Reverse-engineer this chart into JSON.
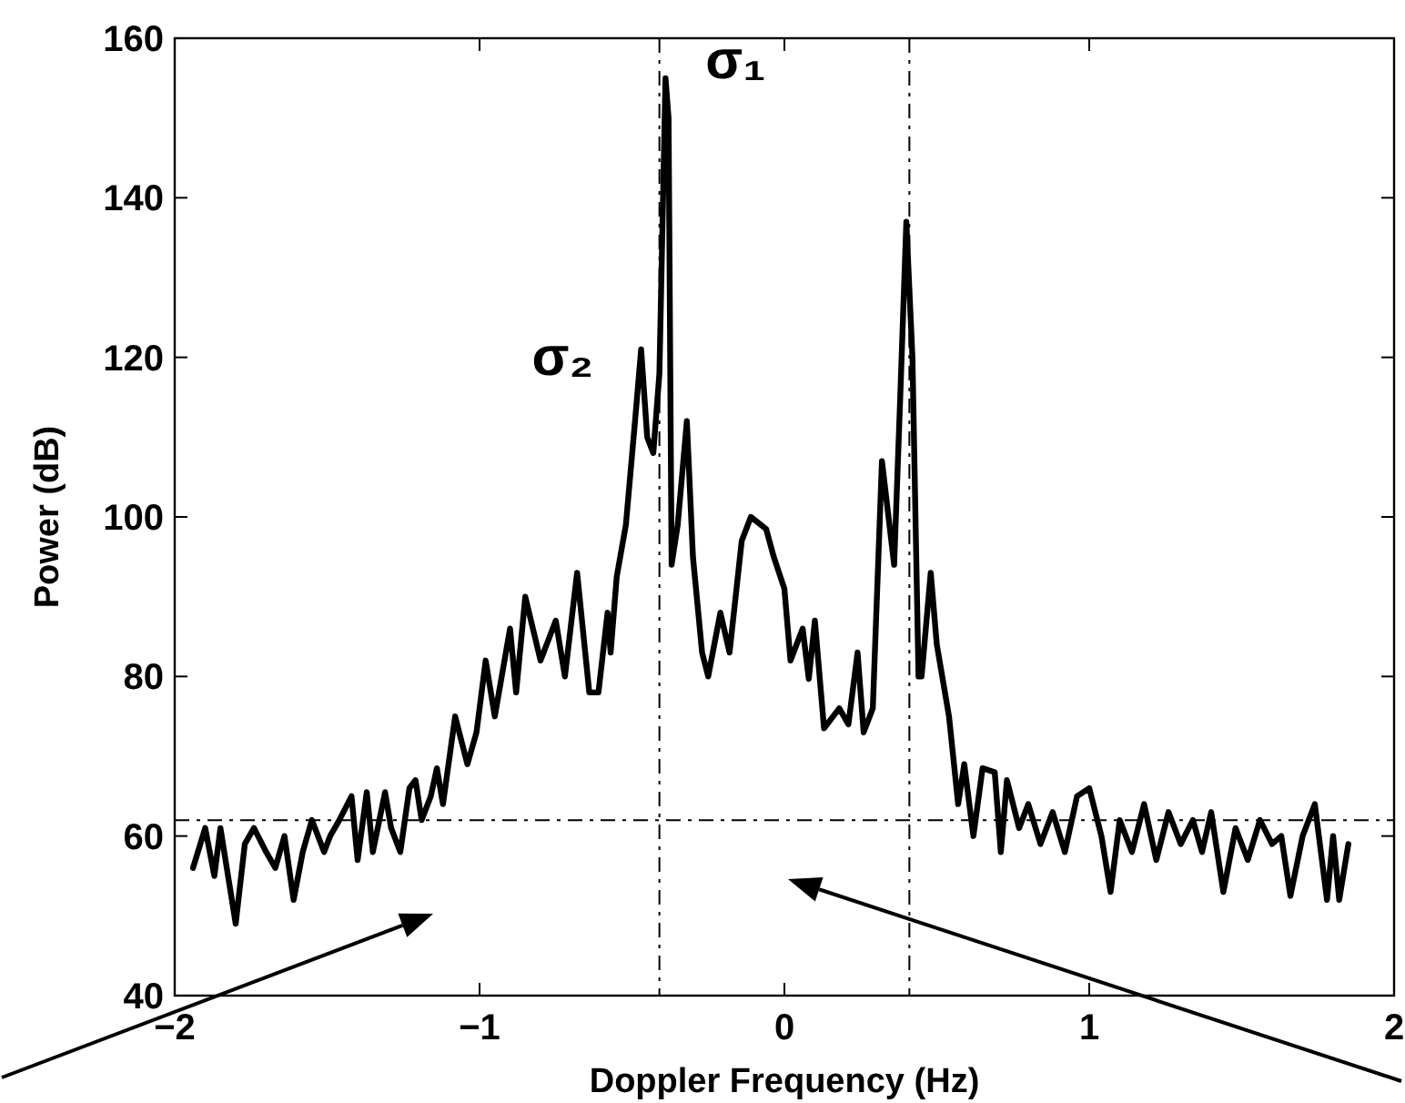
{
  "chart_data": {
    "type": "line",
    "xlabel": "Doppler Frequency (Hz)",
    "ylabel": "Power (dB)",
    "xlim": [
      -2,
      2
    ],
    "xticks": [
      {
        "value": -2,
        "label": "−2"
      },
      {
        "value": -1,
        "label": "−1"
      },
      0,
      1,
      2
    ],
    "ylim": [
      40,
      160
    ],
    "yticks": [
      40,
      60,
      80,
      100,
      120,
      140,
      160
    ],
    "grid": false,
    "marker": "none",
    "line_style": "solid",
    "ref_lines": [
      {
        "axis": "x",
        "value": -0.41,
        "line_style": "dashdot",
        "color": "#000000"
      },
      {
        "axis": "x",
        "value": 0.41,
        "line_style": "dashdot",
        "color": "#000000"
      },
      {
        "axis": "y",
        "value": 62,
        "line_style": "dashdot",
        "color": "#000000"
      }
    ],
    "annotations": [
      {
        "text": "σ₁",
        "x": -0.39,
        "y": 155
      },
      {
        "text": "σ₂",
        "x": -0.47,
        "y": 121
      }
    ],
    "series": [
      {
        "color": "#000000",
        "x": [
          -1.94,
          -1.9,
          -1.87,
          -1.85,
          -1.8,
          -1.77,
          -1.74,
          -1.7,
          -1.67,
          -1.64,
          -1.61,
          -1.58,
          -1.55,
          -1.51,
          -1.49,
          -1.46,
          -1.42,
          -1.4,
          -1.37,
          -1.35,
          -1.31,
          -1.29,
          -1.26,
          -1.23,
          -1.21,
          -1.19,
          -1.16,
          -1.14,
          -1.12,
          -1.08,
          -1.04,
          -1.01,
          -0.98,
          -0.95,
          -0.9,
          -0.88,
          -0.85,
          -0.8,
          -0.75,
          -0.72,
          -0.68,
          -0.64,
          -0.61,
          -0.58,
          -0.57,
          -0.55,
          -0.52,
          -0.49,
          -0.47,
          -0.45,
          -0.43,
          -0.41,
          -0.39,
          -0.38,
          -0.37,
          -0.35,
          -0.32,
          -0.3,
          -0.27,
          -0.25,
          -0.21,
          -0.18,
          -0.14,
          -0.11,
          -0.06,
          -0.035,
          0.0,
          0.02,
          0.06,
          0.08,
          0.1,
          0.13,
          0.18,
          0.21,
          0.24,
          0.26,
          0.29,
          0.32,
          0.36,
          0.38,
          0.4,
          0.42,
          0.44,
          0.45,
          0.48,
          0.5,
          0.54,
          0.57,
          0.59,
          0.62,
          0.65,
          0.69,
          0.71,
          0.73,
          0.77,
          0.8,
          0.84,
          0.88,
          0.92,
          0.96,
          1.0,
          1.04,
          1.07,
          1.1,
          1.14,
          1.18,
          1.22,
          1.26,
          1.3,
          1.34,
          1.37,
          1.4,
          1.44,
          1.48,
          1.52,
          1.56,
          1.6,
          1.63,
          1.66,
          1.7,
          1.74,
          1.78,
          1.8,
          1.82,
          1.85
        ],
        "values": [
          56,
          61,
          55,
          61,
          49,
          59,
          61,
          58,
          56,
          60,
          52,
          58,
          62,
          58,
          60,
          62,
          65,
          57,
          65.5,
          58,
          65.5,
          61,
          58,
          66,
          67,
          62,
          65,
          68.5,
          64,
          75,
          69,
          73,
          82,
          75,
          86,
          78,
          90,
          82,
          87,
          80,
          93,
          78,
          78,
          88,
          83,
          92.5,
          99,
          112,
          121,
          110,
          108,
          118,
          155,
          150,
          94,
          99,
          112,
          95,
          83,
          80,
          88,
          83,
          97,
          100,
          98.5,
          95,
          91,
          82,
          86,
          79.7,
          87,
          73.5,
          76,
          74,
          83,
          73,
          76,
          107,
          94,
          115,
          137,
          120,
          80,
          80,
          93,
          84,
          75,
          64,
          69,
          60,
          68.5,
          68,
          58,
          67,
          61,
          64,
          59,
          63,
          58,
          65,
          66,
          60,
          53,
          62,
          58,
          64,
          57,
          63,
          59,
          62,
          58,
          63,
          53,
          61,
          57,
          62,
          59,
          60,
          52.5,
          60,
          64,
          52,
          60,
          52,
          59
        ]
      }
    ]
  }
}
